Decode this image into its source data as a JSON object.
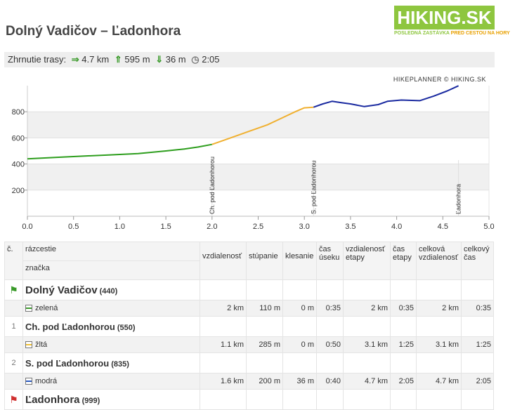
{
  "header": {
    "title": "Dolný Vadičov – Ľadonhora",
    "logo_text": "HIKING.SK",
    "logo_tagline_1": "POSLEDNÁ ZASTÁVKA",
    "logo_tagline_2": "PRED CESTOU NA HORY"
  },
  "summary": {
    "label": "Zhrnutie trasy:",
    "distance": "4.7 km",
    "ascent": "595 m",
    "descent": "36 m",
    "time": "2:05"
  },
  "chart_data": {
    "type": "line",
    "credit": "HIKEPLANNER © HIKING.SK",
    "xlim": [
      0,
      5
    ],
    "ylim": [
      0,
      1000
    ],
    "x_ticks": [
      "0.0",
      "0.5",
      "1.0",
      "1.5",
      "2.0",
      "2.5",
      "3.0",
      "3.5",
      "4.0",
      "4.5",
      "5.0"
    ],
    "y_ticks": [
      "200",
      "400",
      "600",
      "800"
    ],
    "grid": true,
    "series": [
      {
        "color": "#2e9e1e",
        "x": [
          0,
          0.3,
          0.6,
          0.9,
          1.2,
          1.5,
          1.7,
          1.85,
          2.0
        ],
        "y": [
          440,
          450,
          460,
          470,
          480,
          500,
          515,
          530,
          550
        ]
      },
      {
        "color": "#f0b030",
        "x": [
          2.0,
          2.2,
          2.4,
          2.6,
          2.75,
          2.9,
          3.0,
          3.1
        ],
        "y": [
          550,
          600,
          650,
          700,
          750,
          800,
          830,
          835
        ]
      },
      {
        "color": "#1a2aa0",
        "x": [
          3.1,
          3.2,
          3.3,
          3.4,
          3.5,
          3.65,
          3.8,
          3.9,
          4.05,
          4.25,
          4.4,
          4.55,
          4.67
        ],
        "y": [
          835,
          860,
          880,
          870,
          860,
          840,
          855,
          880,
          890,
          885,
          920,
          960,
          999
        ]
      }
    ],
    "annotations": [
      {
        "x": 2.0,
        "label": "Ch. pod Ľadonhorou"
      },
      {
        "x": 3.1,
        "label": "S. pod Ľadonhorou"
      },
      {
        "x": 4.67,
        "label": "Ľadonhora"
      }
    ]
  },
  "table": {
    "headers": {
      "c": "č.",
      "razcestie": "rázcestie",
      "znacka": "značka",
      "vzdialenost": "vzdialenosť",
      "stupanie": "stúpanie",
      "klesanie": "klesanie",
      "cas_useku_1": "čas",
      "cas_useku_2": "úseku",
      "vzd_etapy_1": "vzdialenosť",
      "vzd_etapy_2": "etapy",
      "cas_etapy_1": "čas",
      "cas_etapy_2": "etapy",
      "celk_vzd_1": "celková",
      "celk_vzd_2": "vzdialenosť",
      "celk_cas_1": "celkový",
      "celk_cas_2": "čas"
    },
    "points": [
      {
        "num": "",
        "name": "Dolný Vadičov",
        "alt": "(440)"
      },
      {
        "num": "1",
        "name": "Ch. pod Ľadonhorou",
        "alt": "(550)"
      },
      {
        "num": "2",
        "name": "S. pod Ľadonhorou",
        "alt": "(835)"
      },
      {
        "num": "",
        "name": "Ľadonhora",
        "alt": "(999)"
      }
    ],
    "segments": [
      {
        "mark": "zelená",
        "dist": "2 km",
        "up": "110 m",
        "down": "0 m",
        "t": "0:35",
        "sdist": "2 km",
        "st": "0:35",
        "tdist": "2 km",
        "tt": "0:35"
      },
      {
        "mark": "žltá",
        "dist": "1.1 km",
        "up": "285 m",
        "down": "0 m",
        "t": "0:50",
        "sdist": "3.1 km",
        "st": "1:25",
        "tdist": "3.1 km",
        "tt": "1:25"
      },
      {
        "mark": "modrá",
        "dist": "1.6 km",
        "up": "200 m",
        "down": "36 m",
        "t": "0:40",
        "sdist": "4.7 km",
        "st": "2:05",
        "tdist": "4.7 km",
        "tt": "2:05"
      }
    ]
  }
}
